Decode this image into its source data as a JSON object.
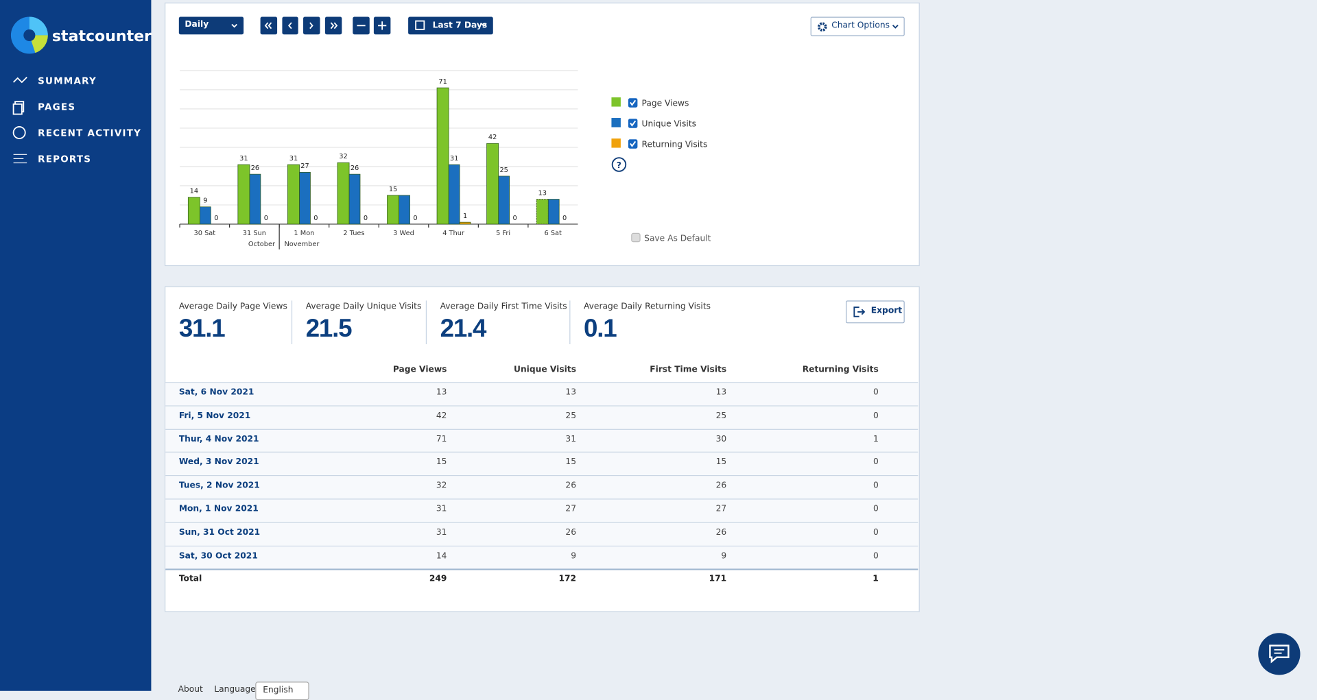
{
  "sidebar": {
    "brand": "statcounter",
    "nav": [
      "SUMMARY",
      "PAGES",
      "RECENT ACTIVITY",
      "REPORTS"
    ]
  },
  "toolbar": {
    "period": "Daily",
    "range": "Last 7 Days",
    "chart_options": "Chart Options"
  },
  "chart_data": {
    "type": "bar",
    "categories": [
      "30 Sat",
      "31 Sun",
      "1 Mon",
      "2 Tues",
      "3 Wed",
      "4 Thur",
      "5 Fri",
      "6 Sat"
    ],
    "months": [
      "October",
      "November"
    ],
    "series": [
      {
        "name": "Page Views",
        "color": "#7dc42a",
        "values": [
          14,
          31,
          31,
          32,
          15,
          71,
          42,
          13
        ]
      },
      {
        "name": "Unique Visits",
        "color": "#1b6fbf",
        "values": [
          9,
          26,
          27,
          26,
          15,
          31,
          25,
          13
        ]
      },
      {
        "name": "Returning Visits",
        "color": "#f0a20c",
        "values": [
          0,
          0,
          0,
          0,
          0,
          1,
          0,
          0
        ]
      }
    ],
    "ylim": [
      0,
      80
    ],
    "yticks": [
      0,
      10,
      20,
      30,
      40,
      50,
      60,
      70,
      80
    ],
    "grid": true,
    "save_default": "Save As Default"
  },
  "summary": {
    "stats": [
      {
        "label": "Average Daily Page Views",
        "value": "31.1"
      },
      {
        "label": "Average Daily Unique Visits",
        "value": "21.5"
      },
      {
        "label": "Average Daily First Time Visits",
        "value": "21.4"
      },
      {
        "label": "Average Daily Returning Visits",
        "value": "0.1"
      }
    ],
    "export": "Export"
  },
  "table": {
    "headers": [
      "Page Views",
      "Unique Visits",
      "First Time Visits",
      "Returning Visits"
    ],
    "rows": [
      [
        "Sat, 6 Nov 2021",
        "13",
        "13",
        "13",
        "0"
      ],
      [
        "Fri, 5 Nov 2021",
        "42",
        "25",
        "25",
        "0"
      ],
      [
        "Thur, 4 Nov 2021",
        "71",
        "31",
        "30",
        "1"
      ],
      [
        "Wed, 3 Nov 2021",
        "15",
        "15",
        "15",
        "0"
      ],
      [
        "Tues, 2 Nov 2021",
        "32",
        "26",
        "26",
        "0"
      ],
      [
        "Mon, 1 Nov 2021",
        "31",
        "27",
        "27",
        "0"
      ],
      [
        "Sun, 31 Oct 2021",
        "31",
        "26",
        "26",
        "0"
      ],
      [
        "Sat, 30 Oct 2021",
        "14",
        "9",
        "9",
        "0"
      ]
    ],
    "total": [
      "Total",
      "249",
      "172",
      "171",
      "1"
    ]
  },
  "footer": {
    "about": "About",
    "language_label": "Language:",
    "language": "English"
  }
}
